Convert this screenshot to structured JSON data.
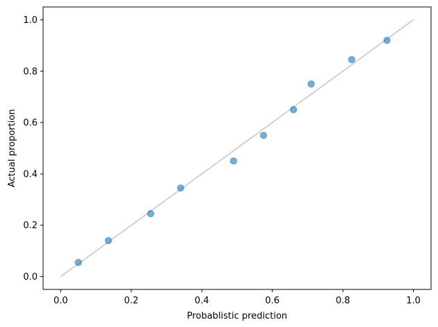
{
  "chart_data": {
    "type": "scatter",
    "xlabel": "Probablistic prediction",
    "ylabel": "Actual proportion",
    "xlim": [
      -0.05,
      1.05
    ],
    "ylim": [
      -0.05,
      1.05
    ],
    "xticks": [
      0.0,
      0.2,
      0.4,
      0.6,
      0.8,
      1.0
    ],
    "yticks": [
      0.0,
      0.2,
      0.4,
      0.6,
      0.8,
      1.0
    ],
    "xtick_labels": [
      "0.0",
      "0.2",
      "0.4",
      "0.6",
      "0.8",
      "1.0"
    ],
    "ytick_labels": [
      "0.0",
      "0.2",
      "0.4",
      "0.6",
      "0.8",
      "1.0"
    ],
    "grid": false,
    "reference_line": {
      "x": [
        0.0,
        1.0
      ],
      "y": [
        0.0,
        1.0
      ],
      "color": "#c8c8c8"
    },
    "series": [
      {
        "color": "#1f77b4",
        "points": [
          {
            "x": 0.05,
            "y": 0.055
          },
          {
            "x": 0.135,
            "y": 0.14
          },
          {
            "x": 0.255,
            "y": 0.245
          },
          {
            "x": 0.34,
            "y": 0.345
          },
          {
            "x": 0.49,
            "y": 0.45
          },
          {
            "x": 0.575,
            "y": 0.55
          },
          {
            "x": 0.66,
            "y": 0.65
          },
          {
            "x": 0.71,
            "y": 0.75
          },
          {
            "x": 0.825,
            "y": 0.845
          },
          {
            "x": 0.925,
            "y": 0.92
          }
        ]
      }
    ]
  }
}
